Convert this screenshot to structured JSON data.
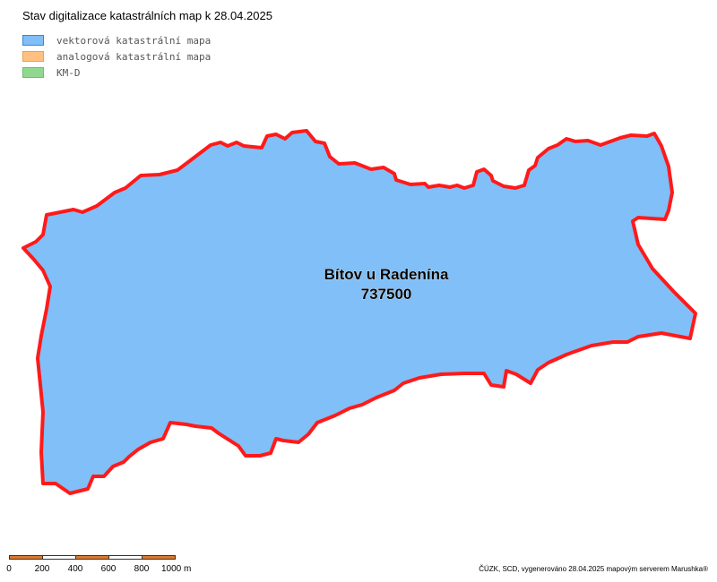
{
  "map": {
    "title": "Stav digitalizace katastrálních map k 28.04.2025",
    "legend": [
      {
        "label": "vektorová katastrální mapa",
        "fill": "#80BFF8",
        "stroke": "#3A86D6"
      },
      {
        "label": "analogová katastrální mapa",
        "fill": "#FFC080",
        "stroke": "#E8A060"
      },
      {
        "label": "KM-D",
        "fill": "#90D890",
        "stroke": "#6CBF6C"
      }
    ],
    "area": {
      "name": "Bítov u Radenína",
      "code": "737500",
      "fill": "#80BFF8",
      "border": "#FF1A1A"
    },
    "scale": {
      "labels": [
        "0",
        "200",
        "400",
        "600",
        "800",
        "1000 m"
      ],
      "colors": [
        "#D9782F",
        "#FFFFFF"
      ]
    },
    "footer": "ČÚZK, SCD, vygenerováno 28.04.2025 mapovým serverem Marushka®"
  }
}
